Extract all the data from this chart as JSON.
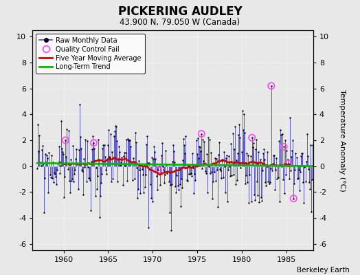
{
  "title": "PICKERING AUDLEY",
  "subtitle": "43.900 N, 79.050 W (Canada)",
  "ylabel": "Temperature Anomaly (°C)",
  "credit": "Berkeley Earth",
  "xlim": [
    1956.5,
    1988.0
  ],
  "ylim": [
    -6.5,
    10.5
  ],
  "yticks": [
    -6,
    -4,
    -2,
    0,
    2,
    4,
    6,
    8,
    10
  ],
  "xticks": [
    1960,
    1965,
    1970,
    1975,
    1980,
    1985
  ],
  "bg_color": "#e8e8e8",
  "grid_color": "#ffffff",
  "raw_line_color": "#4444cc",
  "raw_dot_color": "#000000",
  "qc_fail_color": "#ff44ff",
  "moving_avg_color": "#cc0000",
  "trend_color": "#00bb00",
  "seed": 99
}
